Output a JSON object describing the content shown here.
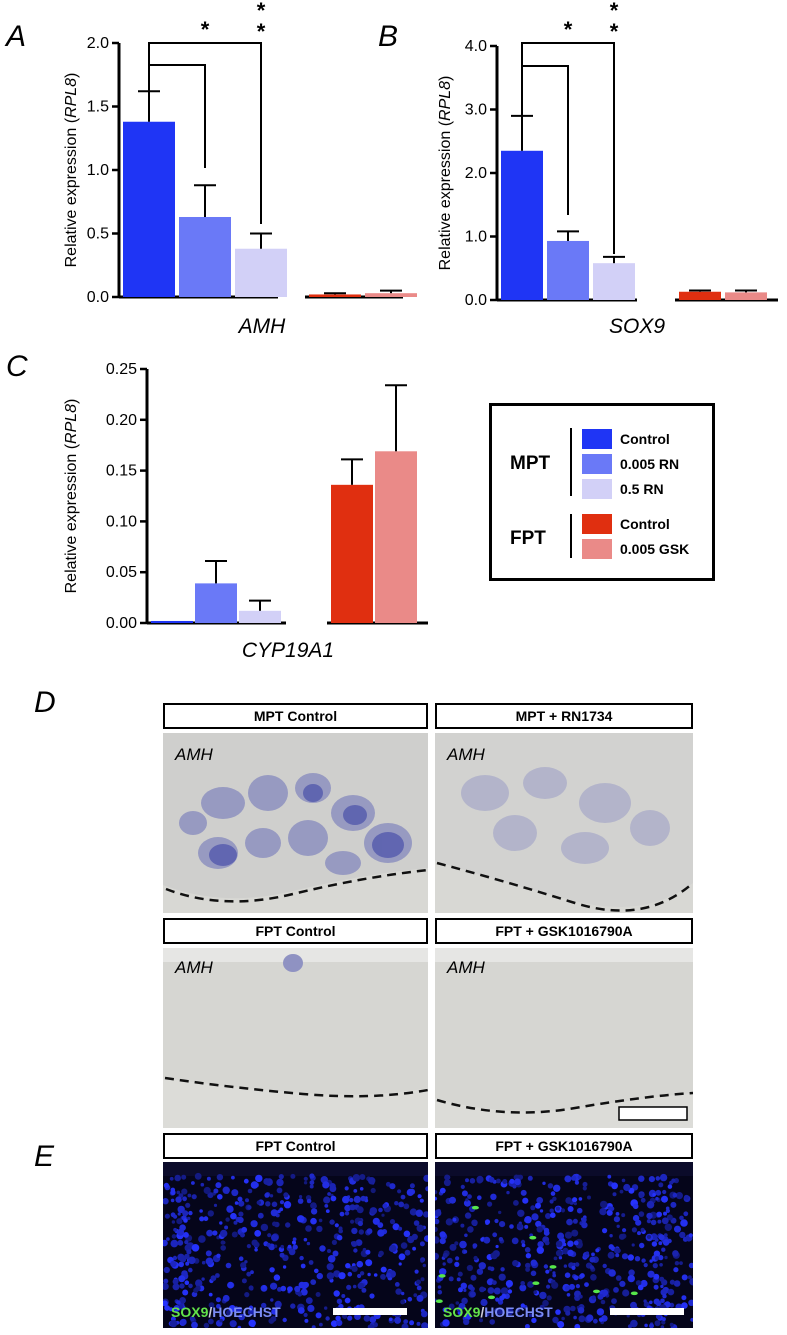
{
  "panels": {
    "A": "A",
    "B": "B",
    "C": "C",
    "D": "D",
    "E": "E"
  },
  "colors": {
    "mpt_control": "#1f35f5",
    "mpt_rn_low": "#6a79f7",
    "mpt_rn_high": "#d2d0f7",
    "fpt_control": "#e02f10",
    "fpt_gsk": "#ea8a88"
  },
  "chart_data": [
    {
      "id": "A",
      "type": "bar",
      "ylabel": "Relative expression (RPL8)",
      "ylabel_main": "Relative expression (",
      "ylabel_gene": "RPL8",
      "ylabel_close": ")",
      "xlabel": "AMH",
      "ylim": [
        0,
        2.0
      ],
      "ticks": [
        "0.0",
        "0.5",
        "1.0",
        "1.5",
        "2.0"
      ],
      "groups": [
        {
          "name": "MPT",
          "bars": [
            {
              "label": "Control",
              "value": 1.38,
              "err": 0.24
            },
            {
              "label": "0.005 RN",
              "value": 0.63,
              "err": 0.25
            },
            {
              "label": "0.5 RN",
              "value": 0.38,
              "err": 0.12
            }
          ]
        },
        {
          "name": "FPT",
          "bars": [
            {
              "label": "Control",
              "value": 0.02,
              "err": 0.01
            },
            {
              "label": "0.005 GSK",
              "value": 0.03,
              "err": 0.02
            }
          ]
        }
      ],
      "significance": [
        {
          "compare": "Control vs 0.005 RN",
          "mark": "*"
        },
        {
          "compare": "Control vs 0.5 RN",
          "mark": "* *"
        }
      ]
    },
    {
      "id": "B",
      "type": "bar",
      "ylabel": "Relative expression (RPL8)",
      "ylabel_main": "Relative expression (",
      "ylabel_gene": "RPL8",
      "ylabel_close": ")",
      "xlabel": "SOX9",
      "ylim": [
        0,
        4.0
      ],
      "ticks": [
        "0.0",
        "1.0",
        "2.0",
        "3.0",
        "4.0"
      ],
      "groups": [
        {
          "name": "MPT",
          "bars": [
            {
              "label": "Control",
              "value": 2.35,
              "err": 0.55
            },
            {
              "label": "0.005 RN",
              "value": 0.93,
              "err": 0.15
            },
            {
              "label": "0.5 RN",
              "value": 0.58,
              "err": 0.1
            }
          ]
        },
        {
          "name": "FPT",
          "bars": [
            {
              "label": "Control",
              "value": 0.13,
              "err": 0.02
            },
            {
              "label": "0.005 GSK",
              "value": 0.12,
              "err": 0.03
            }
          ]
        }
      ],
      "significance": [
        {
          "compare": "Control vs 0.005 RN",
          "mark": "*"
        },
        {
          "compare": "Control vs 0.5 RN",
          "mark": "* *"
        }
      ]
    },
    {
      "id": "C",
      "type": "bar",
      "ylabel": "Relative expression (RPL8)",
      "ylabel_main": "Relative expression (",
      "ylabel_gene": "RPL8",
      "ylabel_close": ")",
      "xlabel": "CYP19A1",
      "ylim": [
        0,
        0.25
      ],
      "ticks": [
        "0.00",
        "0.05",
        "0.10",
        "0.15",
        "0.20",
        "0.25"
      ],
      "groups": [
        {
          "name": "MPT",
          "bars": [
            {
              "label": "Control",
              "value": 0.002,
              "err": 0.0
            },
            {
              "label": "0.005 RN",
              "value": 0.039,
              "err": 0.022
            },
            {
              "label": "0.5 RN",
              "value": 0.012,
              "err": 0.01
            }
          ]
        },
        {
          "name": "FPT",
          "bars": [
            {
              "label": "Control",
              "value": 0.136,
              "err": 0.025
            },
            {
              "label": "0.005 GSK",
              "value": 0.169,
              "err": 0.065
            }
          ]
        }
      ],
      "significance": []
    }
  ],
  "legend": {
    "mpt": {
      "group": "MPT",
      "items": [
        "Control",
        "0.005 RN",
        "0.5 RN"
      ]
    },
    "fpt": {
      "group": "FPT",
      "items": [
        "Control",
        "0.005 GSK"
      ]
    }
  },
  "micrographs": {
    "d1": {
      "title": "MPT Control",
      "gene": "AMH"
    },
    "d2": {
      "title": "MPT  + RN1734",
      "gene": "AMH"
    },
    "d3": {
      "title": "FPT Control",
      "gene": "AMH"
    },
    "d4": {
      "title": "FPT + GSK1016790A",
      "gene": "AMH"
    },
    "e1": {
      "title": "FPT Control",
      "stain_a": "SOX9",
      "stain_sep": "/",
      "stain_b": "HOECHST"
    },
    "e2": {
      "title": "FPT + GSK1016790A",
      "stain_a": "SOX9",
      "stain_sep": "/",
      "stain_b": "HOECHST"
    }
  }
}
